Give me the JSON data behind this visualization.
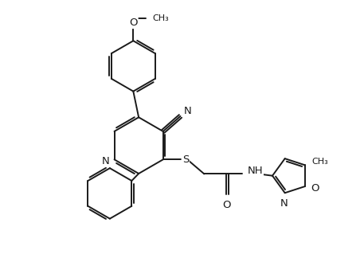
{
  "bg": "#ffffff",
  "lc": "#1a1a1a",
  "lw": 1.4,
  "dbo": 0.06,
  "fs": 9.0,
  "xlim": [
    0,
    10
  ],
  "ylim": [
    0,
    7.2
  ]
}
